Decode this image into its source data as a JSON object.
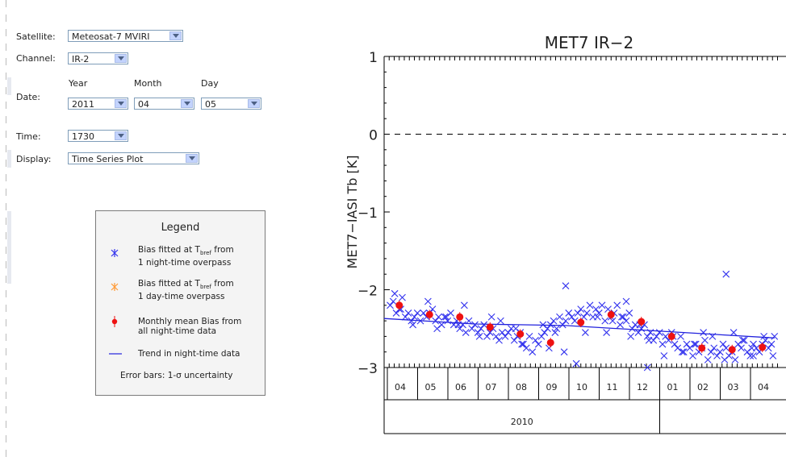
{
  "form": {
    "satellite_label": "Satellite:",
    "satellite_value": "Meteosat-7 MVIRI",
    "channel_label": "Channel:",
    "channel_value": "IR-2",
    "date_label": "Date:",
    "year_label": "Year",
    "month_label": "Month",
    "day_label": "Day",
    "year_value": "2011",
    "month_value": "04",
    "day_value": "05",
    "time_label": "Time:",
    "time_value": "1730",
    "display_label": "Display:",
    "display_value": "Time Series Plot"
  },
  "legend": {
    "title": "Legend",
    "night_bias_1": "Bias fitted at T",
    "night_bias_sub": "bref",
    "night_bias_2": " from",
    "night_bias_3": "1 night-time overpass",
    "day_bias_1": "Bias fitted at T",
    "day_bias_sub": "bref",
    "day_bias_2": " from",
    "day_bias_3": "1 day-time overpass",
    "monthly_1": "Monthly mean Bias from",
    "monthly_2": "all night-time data",
    "trend": "Trend in night-time data",
    "error_bars": "Error bars: 1-σ uncertainty",
    "colors": {
      "night": "#3333ee",
      "day": "#ff9933",
      "monthly": "#ee1111",
      "trend": "#2222dd"
    }
  },
  "chart_data": {
    "type": "scatter",
    "title": "MET7  IR−2",
    "ylabel": "MET7−IASI Tb  [K]",
    "ylim": [
      -3,
      1
    ],
    "yticks": [
      1,
      0,
      -1,
      -2,
      -3
    ],
    "ytick_labels": [
      "1",
      "0",
      "−1",
      "−2",
      "−3"
    ],
    "reference_line": 0,
    "x_month_labels": [
      "04",
      "05",
      "06",
      "07",
      "08",
      "09",
      "10",
      "11",
      "12",
      "01",
      "02",
      "03",
      "04"
    ],
    "x_year_labels": [
      "2010"
    ],
    "x_range_months": [
      0,
      13
    ],
    "series": [
      {
        "marker": "x",
        "color": "#3333ee",
        "x": [
          0.2,
          0.3,
          0.4,
          0.5,
          0.6,
          0.7,
          0.8,
          0.9,
          1.0,
          1.1,
          1.2,
          1.3,
          1.4,
          1.5,
          1.6,
          1.7,
          1.8,
          1.9,
          2.0,
          2.1,
          2.2,
          2.3,
          2.4,
          2.5,
          2.6,
          2.7,
          2.8,
          2.9,
          3.0,
          3.1,
          3.2,
          3.3,
          3.4,
          3.5,
          3.6,
          3.7,
          3.8,
          3.9,
          4.0,
          4.1,
          4.2,
          4.3,
          4.4,
          4.5,
          4.6,
          4.7,
          4.8,
          4.9,
          5.0,
          5.1,
          5.2,
          5.3,
          5.4,
          5.5,
          5.6,
          5.7,
          5.8,
          5.9,
          6.0,
          6.1,
          6.2,
          6.3,
          6.4,
          6.5,
          6.6,
          6.7,
          6.8,
          6.9,
          7.0,
          7.1,
          7.2,
          7.3,
          7.4,
          7.5,
          7.6,
          7.7,
          7.8,
          7.9,
          8.0,
          8.1,
          8.2,
          8.3,
          8.4,
          8.5,
          8.6,
          8.7,
          8.8,
          8.9,
          9.0,
          9.1,
          9.2,
          9.3,
          9.4,
          9.5,
          9.6,
          9.7,
          9.8,
          9.9,
          10.0,
          10.1,
          10.2,
          10.3,
          10.4,
          10.5,
          10.6,
          10.7,
          10.8,
          10.9,
          11.0,
          11.1,
          11.2,
          11.3,
          11.4,
          11.5,
          11.6,
          11.7,
          11.8,
          11.9,
          12.0,
          12.1,
          12.2,
          12.3,
          12.4,
          12.5,
          12.6,
          12.7,
          12.8,
          12.9,
          0.35,
          0.55,
          0.95,
          1.45,
          1.75,
          2.05,
          2.45,
          2.65,
          3.15,
          3.55,
          3.85,
          4.35,
          4.55,
          5.25,
          5.45,
          5.65,
          5.95,
          6.35,
          6.65,
          7.05,
          7.35,
          7.55,
          7.85,
          8.15,
          8.45,
          8.75,
          9.25,
          9.55,
          9.85,
          10.25,
          10.55,
          10.85,
          11.25,
          11.55,
          11.85,
          12.15,
          12.55,
          12.85,
          6.0,
          8.0,
          8.7,
          11.3,
          12.2
        ],
        "y": [
          -2.2,
          -2.15,
          -2.3,
          -2.25,
          -2.1,
          -2.35,
          -2.3,
          -2.4,
          -2.35,
          -2.3,
          -2.4,
          -2.3,
          -2.35,
          -2.3,
          -2.25,
          -2.4,
          -2.35,
          -2.45,
          -2.35,
          -2.4,
          -2.3,
          -2.45,
          -2.4,
          -2.5,
          -2.45,
          -2.55,
          -2.4,
          -2.5,
          -2.45,
          -2.55,
          -2.5,
          -2.45,
          -2.6,
          -2.55,
          -2.5,
          -2.6,
          -2.65,
          -2.55,
          -2.6,
          -2.55,
          -2.5,
          -2.65,
          -2.6,
          -2.55,
          -2.7,
          -2.75,
          -2.6,
          -2.8,
          -2.65,
          -2.7,
          -2.6,
          -2.55,
          -2.5,
          -2.45,
          -2.4,
          -2.5,
          -2.35,
          -2.45,
          -2.4,
          -2.3,
          -2.35,
          -2.4,
          -2.3,
          -2.25,
          -2.35,
          -2.3,
          -2.2,
          -2.35,
          -2.25,
          -2.3,
          -2.2,
          -2.4,
          -2.25,
          -2.35,
          -2.3,
          -2.2,
          -2.45,
          -2.35,
          -2.4,
          -2.3,
          -2.5,
          -2.45,
          -2.55,
          -2.5,
          -2.45,
          -2.6,
          -2.55,
          -2.65,
          -2.6,
          -2.55,
          -2.7,
          -2.6,
          -2.65,
          -2.55,
          -2.7,
          -2.75,
          -2.6,
          -2.8,
          -2.7,
          -2.75,
          -2.85,
          -2.7,
          -2.8,
          -2.75,
          -2.65,
          -2.9,
          -2.8,
          -2.75,
          -2.85,
          -2.8,
          -2.7,
          -2.75,
          -2.85,
          -2.8,
          -2.9,
          -2.7,
          -2.75,
          -2.65,
          -2.8,
          -2.85,
          -2.7,
          -2.75,
          -2.8,
          -2.7,
          -2.65,
          -2.75,
          -2.7,
          -2.6,
          -2.05,
          -2.25,
          -2.45,
          -2.15,
          -2.5,
          -2.35,
          -2.45,
          -2.2,
          -2.6,
          -2.35,
          -2.4,
          -2.5,
          -2.7,
          -2.45,
          -2.75,
          -2.55,
          -2.8,
          -2.95,
          -2.55,
          -2.35,
          -2.55,
          -2.4,
          -2.35,
          -2.6,
          -2.45,
          -2.65,
          -2.85,
          -2.6,
          -2.8,
          -2.7,
          -2.55,
          -2.6,
          -2.9,
          -2.55,
          -2.65,
          -2.75,
          -2.6,
          -2.85,
          -1.95,
          -2.15,
          -3.0,
          -1.8,
          -2.85
        ]
      },
      {
        "name": "",
        "marker": "o",
        "color": "#ee1111",
        "x": [
          0.5,
          1.5,
          2.5,
          3.5,
          4.5,
          5.5,
          6.5,
          7.5,
          8.5,
          9.5,
          10.5,
          11.5,
          12.5
        ],
        "y": [
          -2.2,
          -2.32,
          -2.35,
          -2.48,
          -2.57,
          -2.68,
          -2.42,
          -2.32,
          -2.41,
          -2.6,
          -2.75,
          -2.77,
          -2.74
        ]
      },
      {
        "marker": "line",
        "color": "#2222dd",
        "x": [
          0,
          3,
          6,
          9,
          12.9
        ],
        "y": [
          -2.37,
          -2.44,
          -2.46,
          -2.53,
          -2.62
        ]
      }
    ],
    "grid": false
  }
}
